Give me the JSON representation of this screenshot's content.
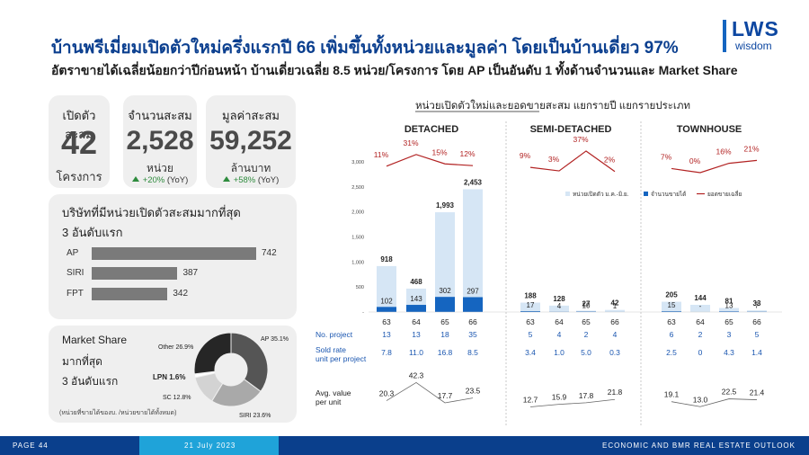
{
  "header": {
    "title": "บ้านพรีเมี่ยมเปิดตัวใหม่ครึ่งแรกปี 66 เพิ่มขึ้นทั้งหน่วยและมูลค่า โดยเป็นบ้านเดี่ยว 97%",
    "subtitle": "อัตราขายได้เฉลี่ยน้อยกว่าปีก่อนหน้า บ้านเดี่ยวเฉลี่ย 8.5 หน่วย/โครงการ โดย AP เป็นอันดับ 1 ทั้งด้านจำนวนและ Market Share"
  },
  "logo": {
    "main": "LWS",
    "sub": "wisdom"
  },
  "stats": {
    "projects": {
      "label": "เปิดตัวสะสม",
      "value": "42",
      "unit": "โครงการ"
    },
    "units": {
      "label": "จำนวนสะสม",
      "value": "2,528",
      "unit": "หน่วย",
      "yoy": "+20%",
      "yoy_suffix": "(YoY)"
    },
    "value": {
      "label": "มูลค่าสะสม",
      "value": "59,252",
      "unit": "ล้านบาท",
      "yoy": "+58%",
      "yoy_suffix": "(YoY)"
    }
  },
  "top_developers": {
    "title_line1": "บริษัทที่มีหน่วยเปิดตัวสะสมมากที่สุด",
    "title_line2": "3 อันดับแรก",
    "items": [
      {
        "name": "AP",
        "value": 742,
        "display": "742"
      },
      {
        "name": "SIRI",
        "value": 387,
        "display": "387"
      },
      {
        "name": "FPT",
        "value": 342,
        "display": "342"
      }
    ]
  },
  "market_share": {
    "title_line1": "Market Share",
    "title_line2": "มากที่สุด",
    "title_line3": "3 อันดับแรก",
    "note": "(หน่วยที่ขายได้ของบ. /หน่วยขายได้ทั้งหมด)",
    "slices": [
      {
        "name": "AP",
        "value": 35.1,
        "label": "AP 35.1%",
        "color": "#555555"
      },
      {
        "name": "SIRI",
        "value": 23.6,
        "label": "SIRI 23.6%",
        "color": "#a9a9a9"
      },
      {
        "name": "SC",
        "value": 12.8,
        "label": "SC 12.8%",
        "color": "#d3d3d3"
      },
      {
        "name": "LPN",
        "value": 1.6,
        "label": "LPN 1.6%",
        "color": "#ffffff"
      },
      {
        "name": "Other",
        "value": 26.9,
        "label": "Other 26.9%",
        "color": "#262626"
      }
    ]
  },
  "chart_data": {
    "type": "bar",
    "title": "หน่วยเปิดตัวใหม่และยอดขายสะสม แยกรายปี แยกรายประเภท",
    "legend": [
      "หน่วยเปิดตัว ม.ค.-มิ.ย.",
      "จำนวนขายได้",
      "ยอดขายเฉลี่ย"
    ],
    "legend_position": "top-right",
    "colors": {
      "launched": "#d6e6f5",
      "sold": "#1565c0",
      "line": "#b22222"
    },
    "y_ticks": [
      "3,000",
      "2,500",
      "2,000",
      "1,500",
      "1,000",
      "500",
      "-"
    ],
    "ylim": [
      0,
      3000
    ],
    "row_labels": {
      "projects": "No. project",
      "rate_line1": "Sold rate",
      "rate_line2": "unit per project",
      "avg_line1": "Avg. value",
      "avg_line2": "per unit"
    },
    "groups": [
      {
        "name": "DETACHED",
        "years": [
          "63",
          "64",
          "65",
          "66"
        ],
        "launched": [
          918,
          468,
          1993,
          2453
        ],
        "launched_labels": [
          "918",
          "468",
          "1,993",
          "2,453"
        ],
        "sold": [
          102,
          143,
          302,
          297
        ],
        "sold_labels": [
          "102",
          "143",
          "302",
          "297"
        ],
        "sell_through_pct": [
          "11%",
          "31%",
          "15%",
          "12%"
        ],
        "sell_through": [
          11,
          31,
          15,
          12
        ],
        "projects": [
          "13",
          "13",
          "18",
          "35"
        ],
        "sold_rate": [
          "7.8",
          "11.0",
          "16.8",
          "8.5"
        ],
        "avg_value": [
          20.3,
          42.3,
          17.7,
          23.5
        ],
        "avg_value_labels": [
          "20.3",
          "42.3",
          "17.7",
          "23.5"
        ]
      },
      {
        "name": "SEMI-DETACHED",
        "years": [
          "63",
          "64",
          "65",
          "66"
        ],
        "launched": [
          188,
          128,
          27,
          42
        ],
        "launched_labels": [
          "188",
          "128",
          "27",
          "42"
        ],
        "sold": [
          17,
          4,
          10,
          1
        ],
        "sold_labels": [
          "17",
          "4",
          "10",
          "1"
        ],
        "sell_through_pct": [
          "9%",
          "3%",
          "37%",
          "2%"
        ],
        "sell_through": [
          9,
          3,
          37,
          2
        ],
        "projects": [
          "5",
          "4",
          "2",
          "4"
        ],
        "sold_rate": [
          "3.4",
          "1.0",
          "5.0",
          "0.3"
        ],
        "avg_value": [
          12.7,
          15.9,
          17.8,
          21.8
        ],
        "avg_value_labels": [
          "12.7",
          "15.9",
          "17.8",
          "21.8"
        ]
      },
      {
        "name": "TOWNHOUSE",
        "years": [
          "63",
          "64",
          "65",
          "66"
        ],
        "launched": [
          205,
          144,
          81,
          33
        ],
        "launched_labels": [
          "205",
          "144",
          "81",
          "33"
        ],
        "sold": [
          15,
          0,
          13,
          7
        ],
        "sold_labels": [
          "15",
          "-",
          "13",
          "7"
        ],
        "sell_through_pct": [
          "7%",
          "0%",
          "16%",
          "21%"
        ],
        "sell_through": [
          7,
          0,
          16,
          21
        ],
        "projects": [
          "6",
          "2",
          "3",
          "5"
        ],
        "sold_rate": [
          "2.5",
          "0",
          "4.3",
          "1.4"
        ],
        "avg_value": [
          19.1,
          13.0,
          22.5,
          21.4
        ],
        "avg_value_labels": [
          "19.1",
          "13.0",
          "22.5",
          "21.4"
        ]
      }
    ]
  },
  "footer": {
    "page": "PAGE 44",
    "date": "21 July 2023",
    "brand": "ECONOMIC AND BMR REAL ESTATE OUTLOOK"
  }
}
